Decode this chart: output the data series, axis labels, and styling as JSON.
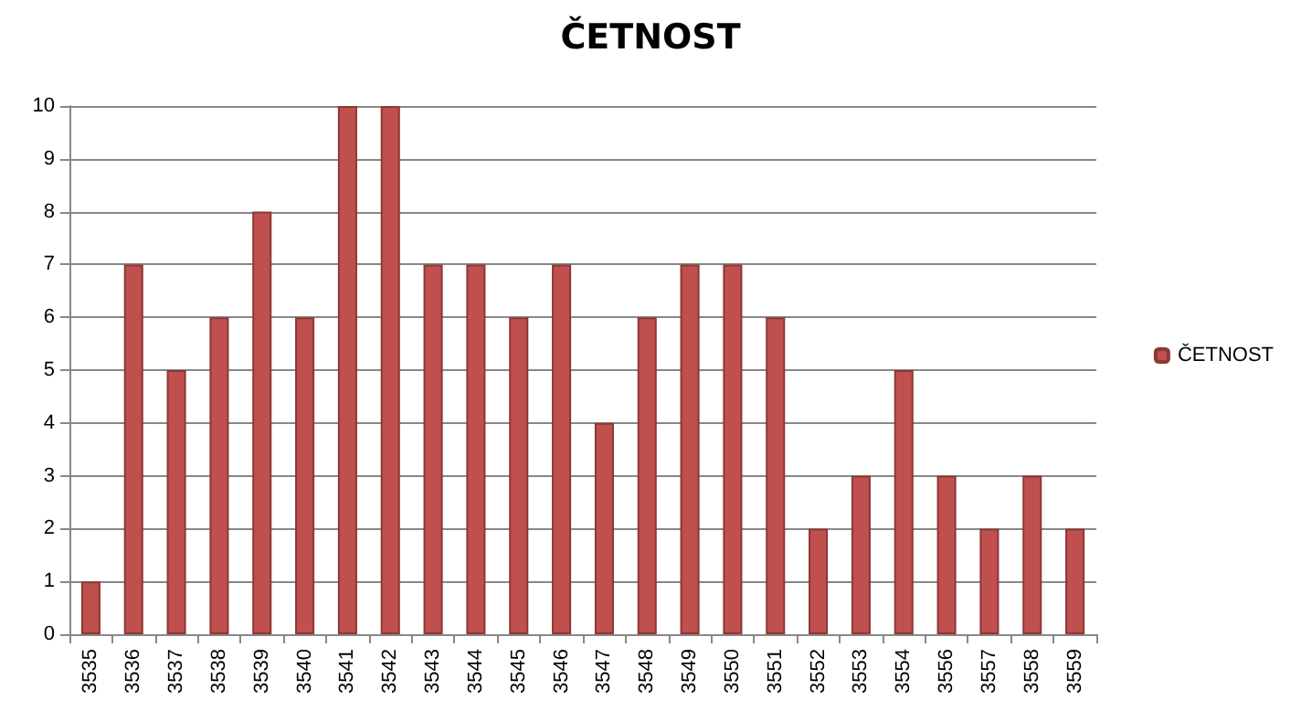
{
  "chart_data": {
    "type": "bar",
    "title": "ČETNOST",
    "categories": [
      "3535",
      "3536",
      "3537",
      "3538",
      "3539",
      "3540",
      "3541",
      "3542",
      "3543",
      "3544",
      "3545",
      "3546",
      "3547",
      "3548",
      "3549",
      "3550",
      "3551",
      "3552",
      "3553",
      "3554",
      "3556",
      "3557",
      "3558",
      "3559"
    ],
    "series": [
      {
        "name": "ČETNOST",
        "color": "#c0504d",
        "values": [
          1,
          7,
          5,
          6,
          8,
          6,
          10,
          10,
          7,
          7,
          6,
          7,
          4,
          6,
          7,
          7,
          6,
          2,
          3,
          5,
          3,
          2,
          3,
          2
        ]
      }
    ],
    "ylim": [
      0,
      10
    ],
    "yticks": [
      0,
      1,
      2,
      3,
      4,
      5,
      6,
      7,
      8,
      9,
      10
    ],
    "grid": "y",
    "legend": "right"
  }
}
